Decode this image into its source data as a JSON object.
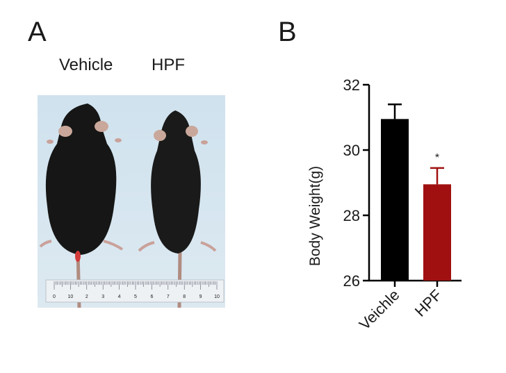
{
  "panels": {
    "a_letter": "A",
    "b_letter": "B"
  },
  "photo": {
    "labels": [
      "Vehicle",
      "HPF"
    ],
    "ruler_ticks": [
      "0",
      "10",
      "2",
      "3",
      "4",
      "5",
      "6",
      "7",
      "8",
      "9",
      "10"
    ]
  },
  "chart_data": {
    "type": "bar",
    "categories": [
      "Veichle",
      "HPF"
    ],
    "values": [
      30.95,
      28.95
    ],
    "errors": [
      0.45,
      0.5
    ],
    "colors": [
      "#000000",
      "#a01010"
    ],
    "significance": [
      "",
      "*"
    ],
    "ylabel": "Body Weight(g)",
    "xlabel": "",
    "title": "",
    "ylim": [
      26,
      32
    ],
    "yticks": [
      26,
      28,
      30,
      32
    ],
    "grid": false
  }
}
